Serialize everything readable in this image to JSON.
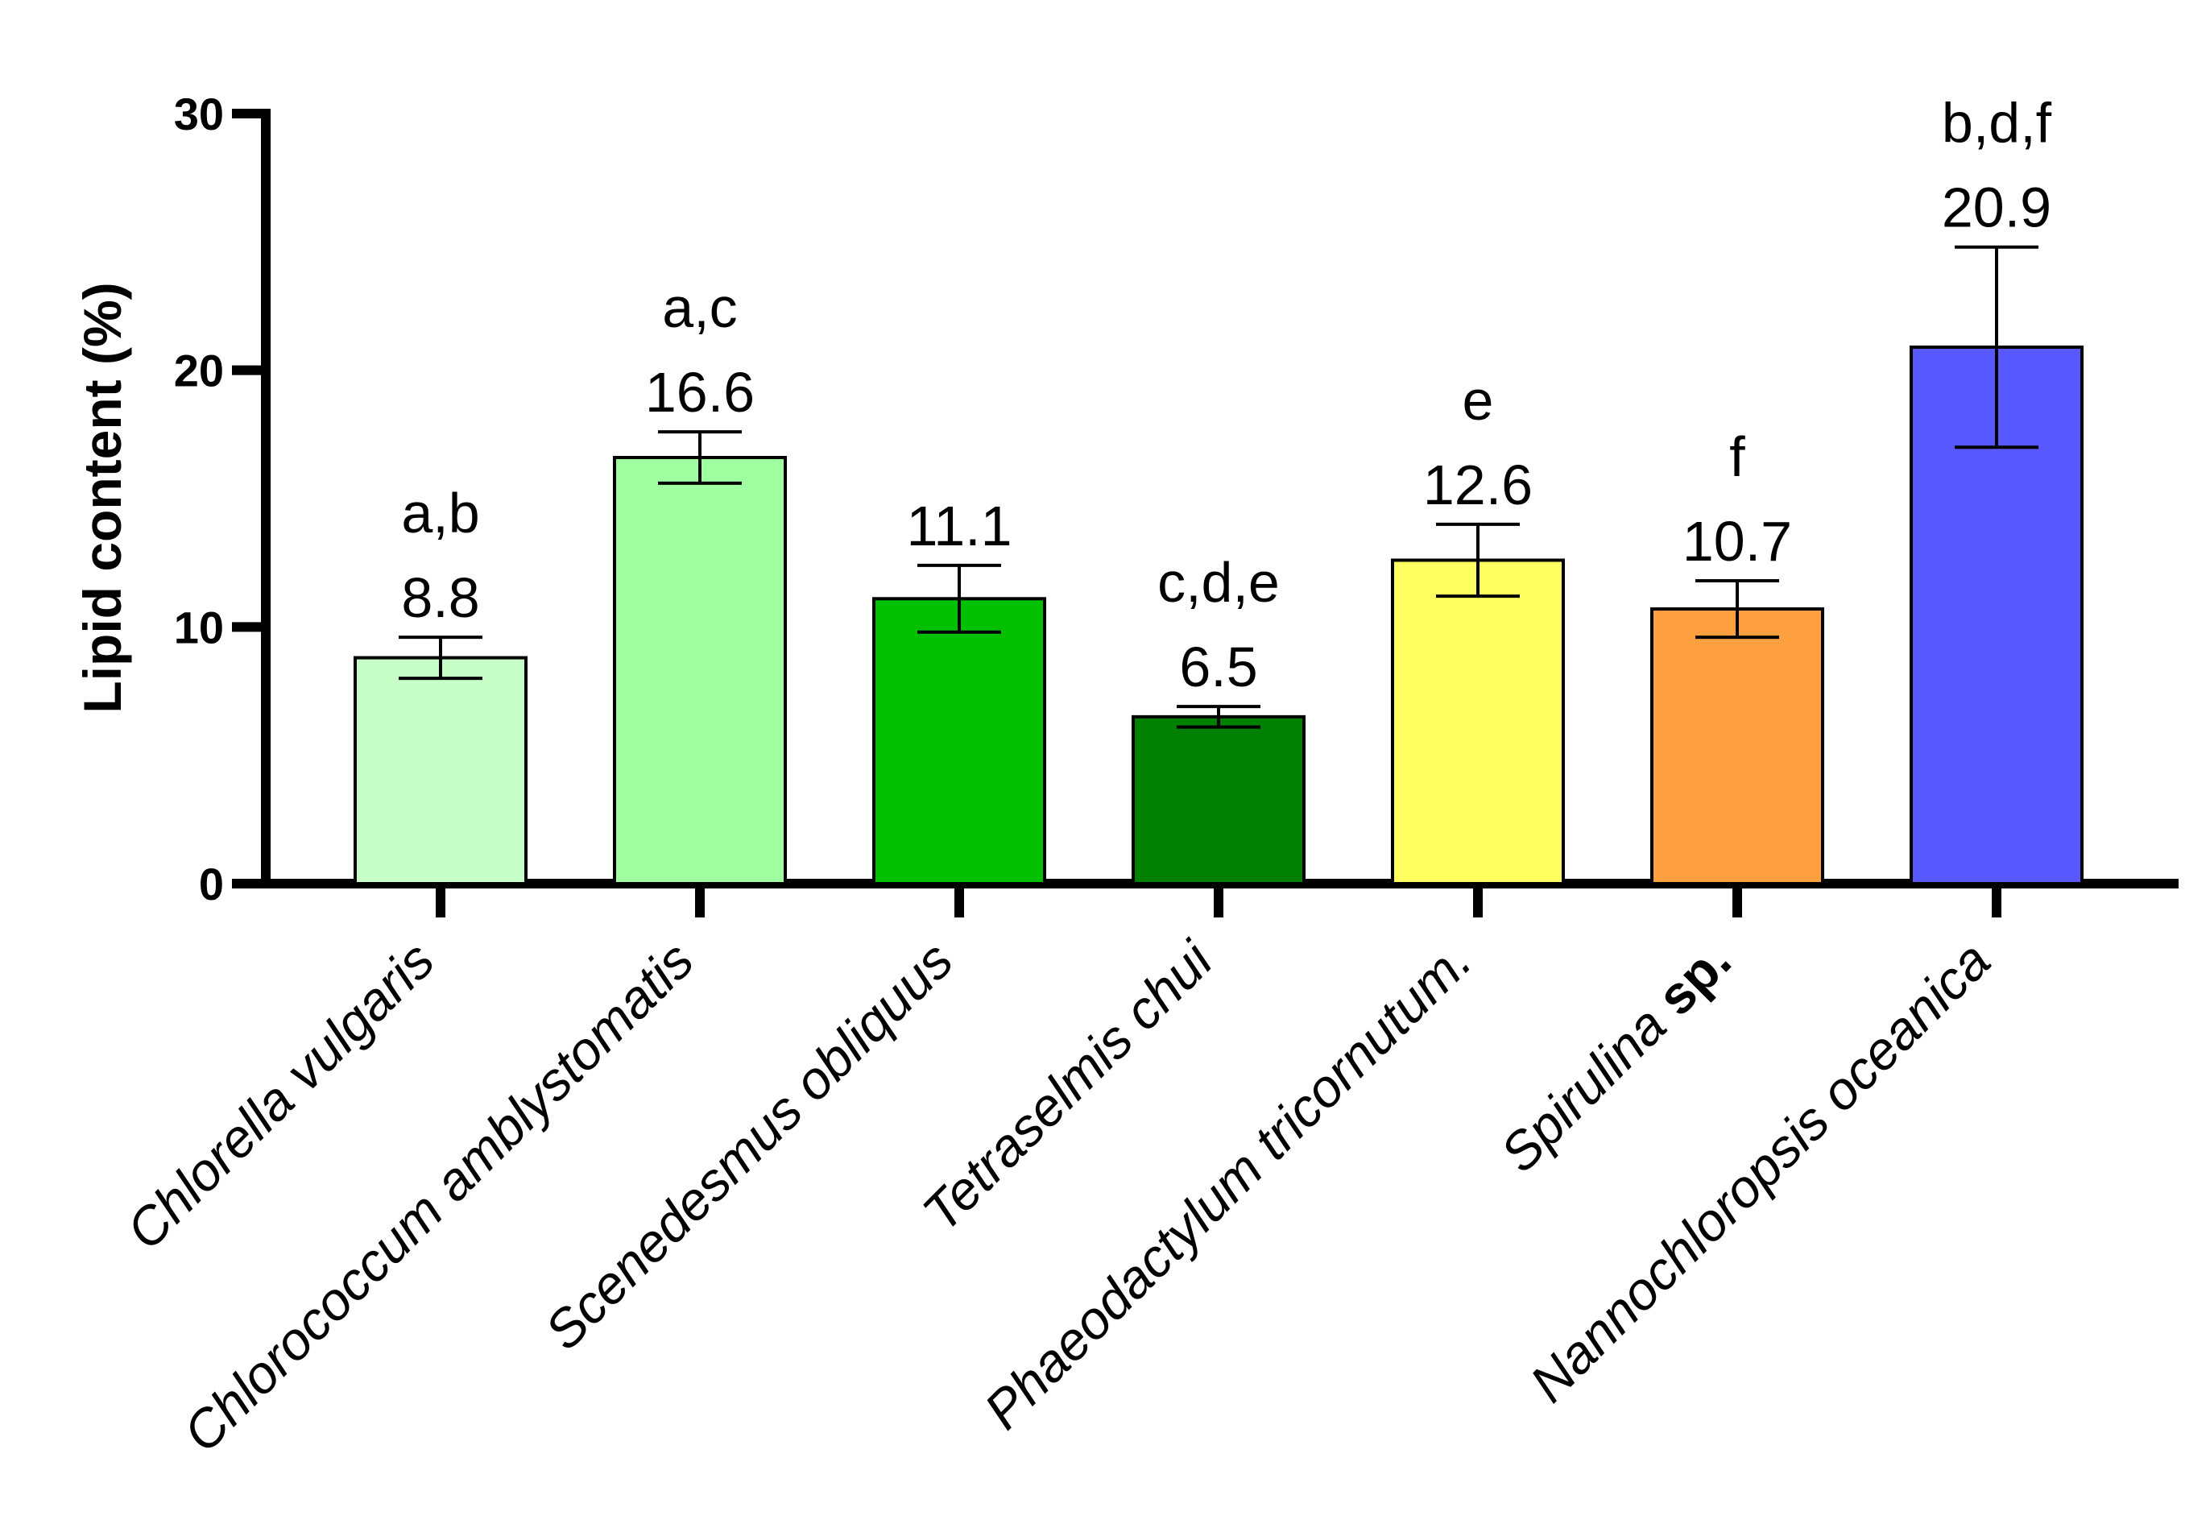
{
  "chart_data": {
    "type": "bar",
    "title": "",
    "xlabel": "",
    "ylabel": "Lipid content (%)",
    "ylim": [
      0,
      30
    ],
    "yticks": [
      0,
      10,
      20,
      30
    ],
    "categories": [
      {
        "name": "Chlorella vulgaris",
        "suffix": ""
      },
      {
        "name": "Chlorococcum amblystomatis",
        "suffix": ""
      },
      {
        "name": "Scenedesmus obliquus",
        "suffix": ""
      },
      {
        "name": "Tetraselmis chui",
        "suffix": ""
      },
      {
        "name": "Phaeodactylum tricornutum.",
        "suffix": ""
      },
      {
        "name": "Spirulina ",
        "suffix": "sp."
      },
      {
        "name": "Nannochloropsis oceanica",
        "suffix": ""
      }
    ],
    "values": [
      8.8,
      16.6,
      11.1,
      6.5,
      12.6,
      10.7,
      20.9
    ],
    "value_labels": [
      "8.8",
      "16.6",
      "11.1",
      "6.5",
      "12.6",
      "10.7",
      "20.9"
    ],
    "error": [
      0.8,
      1.0,
      1.3,
      0.4,
      1.4,
      1.1,
      3.9
    ],
    "significance": [
      "a,b",
      "a,c",
      "",
      "c,d,e",
      "e",
      "f",
      "b,d,f"
    ],
    "colors": [
      "#c8ffc8",
      "#a0ffa0",
      "#00c000",
      "#008000",
      "#ffff60",
      "#ffa040",
      "#5858ff"
    ]
  }
}
